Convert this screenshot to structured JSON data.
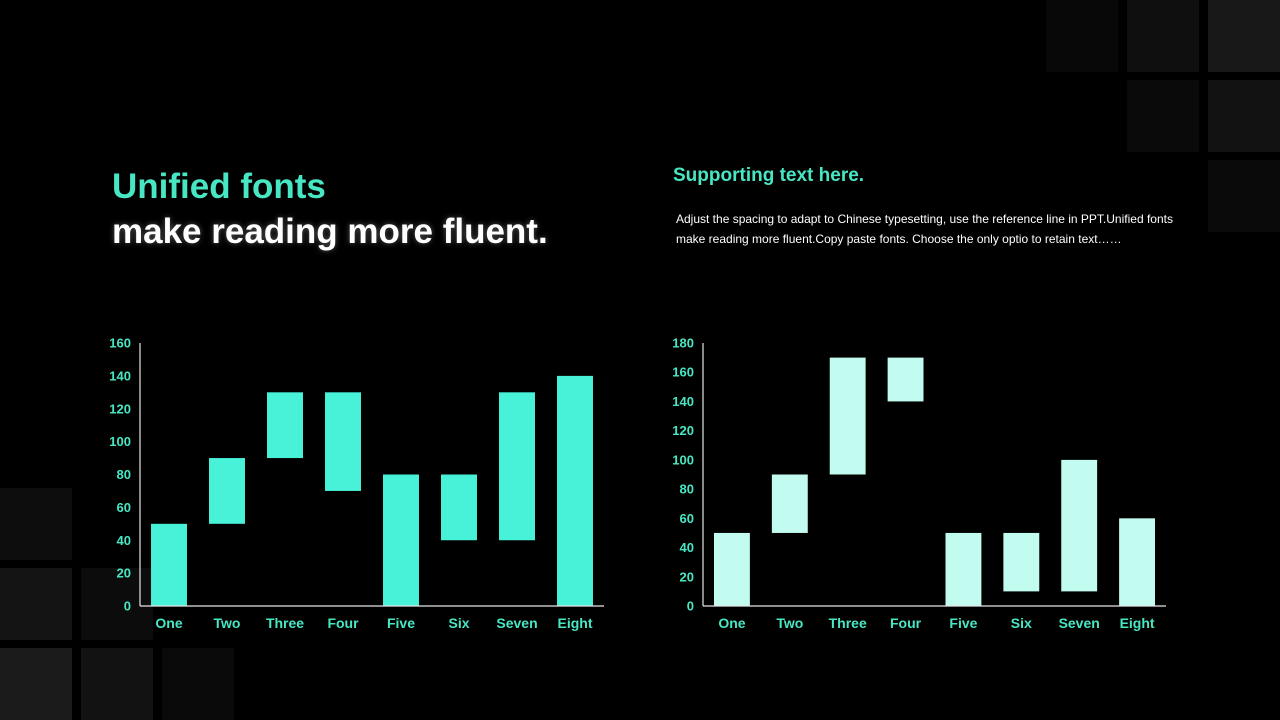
{
  "colors": {
    "accent": "#48e7c4",
    "bar_left": "#48f2d9",
    "bar_right": "#c2fbf0",
    "axis": "#e6e6e6",
    "text": "#ffffff"
  },
  "headline": {
    "accent": "Unified fonts",
    "main": "make reading more fluent."
  },
  "support": {
    "heading": "Supporting text here.",
    "body": "Adjust the spacing to adapt to Chinese typesetting, use the reference line in PPT.Unified fonts make reading more fluent.Copy paste fonts. Choose the only optio to retain text……"
  },
  "chart_data": [
    {
      "type": "bar",
      "subtype": "floating",
      "categories": [
        "One",
        "Two",
        "Three",
        "Four",
        "Five",
        "Six",
        "Seven",
        "Eight"
      ],
      "ranges": [
        [
          0,
          50
        ],
        [
          50,
          90
        ],
        [
          90,
          130
        ],
        [
          70,
          130
        ],
        [
          0,
          80
        ],
        [
          40,
          80
        ],
        [
          40,
          130
        ],
        [
          0,
          140
        ]
      ],
      "ylim": [
        0,
        160
      ],
      "yticks": [
        0,
        20,
        40,
        60,
        80,
        100,
        120,
        140,
        160
      ],
      "grid": false,
      "color": "#48f2d9"
    },
    {
      "type": "bar",
      "subtype": "floating",
      "categories": [
        "One",
        "Two",
        "Three",
        "Four",
        "Five",
        "Six",
        "Seven",
        "Eight"
      ],
      "ranges": [
        [
          0,
          50
        ],
        [
          50,
          90
        ],
        [
          90,
          170
        ],
        [
          140,
          170
        ],
        [
          0,
          50
        ],
        [
          10,
          50
        ],
        [
          10,
          100
        ],
        [
          0,
          60
        ]
      ],
      "ylim": [
        0,
        180
      ],
      "yticks": [
        0,
        20,
        40,
        60,
        80,
        100,
        120,
        140,
        160,
        180
      ],
      "grid": false,
      "color": "#c2fbf0"
    }
  ]
}
